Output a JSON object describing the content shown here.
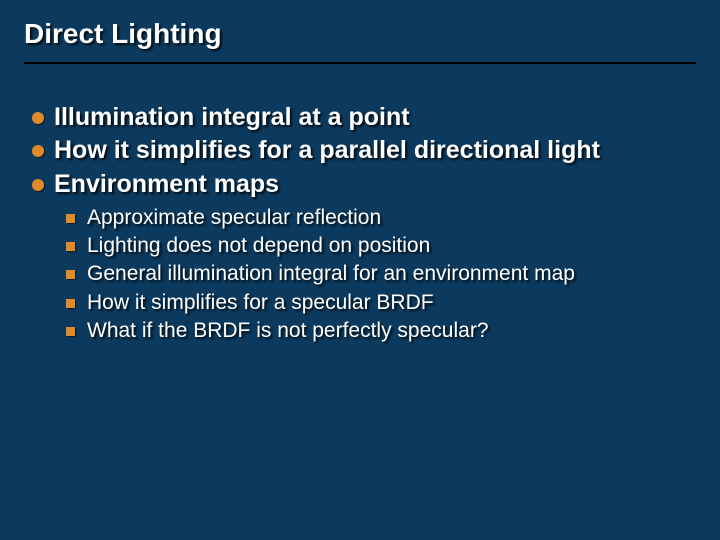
{
  "colors": {
    "background": "#0c3a5e",
    "title_text": "#ffffff",
    "body_text": "#ffffff",
    "bullet_accent": "#e08a2c",
    "rule": "#000000",
    "shadow": "rgba(0,0,0,0.8)"
  },
  "typography": {
    "title_fontsize": 28,
    "l1_fontsize": 25,
    "l2_fontsize": 21,
    "font_family": "Verdana",
    "title_weight": "bold",
    "l1_weight": "bold",
    "l2_weight": "normal"
  },
  "title": "Direct Lighting",
  "bullets": [
    {
      "text": "Illumination integral at a point"
    },
    {
      "text": "How it simplifies for a parallel directional light"
    },
    {
      "text": "Environment maps",
      "sub": [
        "Approximate specular reflection",
        "Lighting does not depend on position",
        "General illumination integral for an environment map",
        "How it simplifies for a specular BRDF",
        "What if the BRDF is not perfectly specular?"
      ]
    }
  ]
}
